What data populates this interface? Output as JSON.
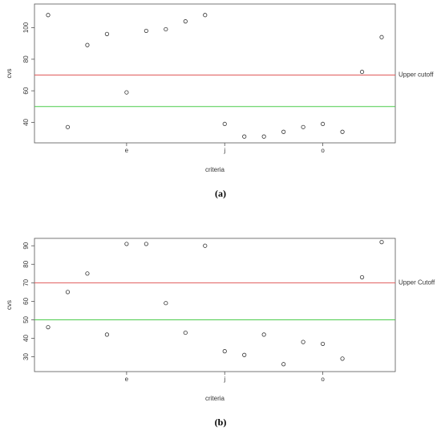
{
  "chart_data": [
    {
      "type": "scatter",
      "caption": "(a)",
      "x_label": "criteria",
      "y_label": "cvs",
      "categories": [
        null,
        null,
        null,
        null,
        "e",
        null,
        null,
        null,
        null,
        "j",
        null,
        null,
        null,
        null,
        "o",
        null,
        null,
        null
      ],
      "values": [
        108,
        37,
        89,
        96,
        59,
        98,
        99,
        104,
        108,
        39,
        31,
        31,
        34,
        37,
        39,
        34,
        72,
        94
      ],
      "color": "#333333",
      "ylim": [
        27,
        115
      ],
      "yticks": [
        40,
        60,
        80,
        100
      ],
      "reference_lines": [
        {
          "value": 70,
          "color": "#e05a5a",
          "label": "Upper cutoff"
        },
        {
          "value": 50,
          "color": "#4ccc4c"
        }
      ]
    },
    {
      "type": "scatter",
      "caption": "(b)",
      "x_label": "criteria",
      "y_label": "cvs",
      "categories": [
        null,
        null,
        null,
        null,
        "e",
        null,
        null,
        null,
        null,
        "j",
        null,
        null,
        null,
        null,
        "o",
        null,
        null,
        null
      ],
      "values": [
        46,
        65,
        75,
        42,
        91,
        91,
        59,
        43,
        90,
        33,
        31,
        42,
        26,
        38,
        37,
        29,
        73,
        92
      ],
      "color": "#333333",
      "ylim": [
        22,
        94
      ],
      "yticks": [
        30,
        40,
        50,
        60,
        70,
        80,
        90
      ],
      "reference_lines": [
        {
          "value": 70,
          "color": "#e05a5a",
          "label": "Upper Cutoff"
        },
        {
          "value": 50,
          "color": "#4ccc4c"
        }
      ]
    }
  ]
}
